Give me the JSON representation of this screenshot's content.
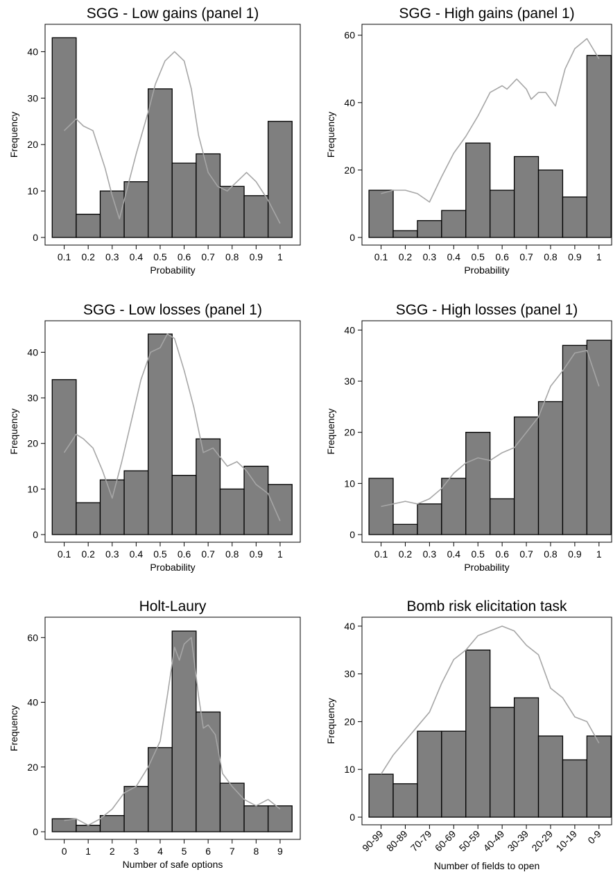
{
  "chart_data": [
    {
      "type": "bar",
      "title": "SGG - Low gains (panel 1)",
      "xlabel": "Probability",
      "ylabel": "Frequency",
      "categories": [
        "0.1",
        "0.2",
        "0.3",
        "0.4",
        "0.5",
        "0.6",
        "0.7",
        "0.8",
        "0.9",
        "1"
      ],
      "values": [
        43,
        5,
        10,
        12,
        32,
        16,
        18,
        11,
        9,
        25
      ],
      "ylim": [
        0,
        45
      ],
      "yticks": [
        0,
        10,
        20,
        30,
        40
      ],
      "density_curve": [
        [
          0.1,
          23
        ],
        [
          0.15,
          25.5
        ],
        [
          0.18,
          24
        ],
        [
          0.22,
          23
        ],
        [
          0.27,
          15
        ],
        [
          0.3,
          9
        ],
        [
          0.33,
          4
        ],
        [
          0.36,
          10
        ],
        [
          0.4,
          18
        ],
        [
          0.45,
          27
        ],
        [
          0.48,
          33
        ],
        [
          0.52,
          38
        ],
        [
          0.56,
          40
        ],
        [
          0.6,
          38
        ],
        [
          0.63,
          32
        ],
        [
          0.66,
          22
        ],
        [
          0.7,
          14
        ],
        [
          0.74,
          11
        ],
        [
          0.78,
          10
        ],
        [
          0.82,
          12
        ],
        [
          0.86,
          14
        ],
        [
          0.9,
          12
        ],
        [
          0.95,
          8
        ],
        [
          1,
          3
        ]
      ]
    },
    {
      "type": "bar",
      "title": "SGG - High gains (panel 1)",
      "xlabel": "Probability",
      "ylabel": "Frequency",
      "categories": [
        "0.1",
        "0.2",
        "0.3",
        "0.4",
        "0.5",
        "0.6",
        "0.7",
        "0.8",
        "0.9",
        "1"
      ],
      "values": [
        14,
        2,
        5,
        8,
        28,
        14,
        24,
        20,
        12,
        54
      ],
      "ylim": [
        0,
        62
      ],
      "yticks": [
        0,
        20,
        40,
        60
      ],
      "density_curve": [
        [
          0.1,
          13
        ],
        [
          0.15,
          14
        ],
        [
          0.2,
          14
        ],
        [
          0.25,
          13
        ],
        [
          0.3,
          10.5
        ],
        [
          0.35,
          18
        ],
        [
          0.4,
          25
        ],
        [
          0.45,
          30
        ],
        [
          0.5,
          36
        ],
        [
          0.55,
          43
        ],
        [
          0.6,
          45
        ],
        [
          0.62,
          44
        ],
        [
          0.66,
          47
        ],
        [
          0.7,
          44
        ],
        [
          0.72,
          41
        ],
        [
          0.75,
          43
        ],
        [
          0.78,
          43
        ],
        [
          0.82,
          39
        ],
        [
          0.86,
          50
        ],
        [
          0.9,
          56
        ],
        [
          0.95,
          59
        ],
        [
          1,
          53
        ]
      ]
    },
    {
      "type": "bar",
      "title": "SGG - Low losses (panel 1)",
      "xlabel": "Probability",
      "ylabel": "Frequency",
      "categories": [
        "0.1",
        "0.2",
        "0.3",
        "0.4",
        "0.5",
        "0.6",
        "0.7",
        "0.8",
        "0.9",
        "1"
      ],
      "values": [
        34,
        7,
        12,
        14,
        44,
        13,
        21,
        10,
        15,
        11
      ],
      "ylim": [
        0,
        46
      ],
      "yticks": [
        0,
        10,
        20,
        30,
        40
      ],
      "density_curve": [
        [
          0.1,
          18
        ],
        [
          0.15,
          22
        ],
        [
          0.18,
          21
        ],
        [
          0.22,
          19
        ],
        [
          0.26,
          14
        ],
        [
          0.3,
          8
        ],
        [
          0.34,
          16
        ],
        [
          0.38,
          25
        ],
        [
          0.42,
          34
        ],
        [
          0.46,
          40
        ],
        [
          0.5,
          41
        ],
        [
          0.53,
          44
        ],
        [
          0.56,
          43
        ],
        [
          0.6,
          36
        ],
        [
          0.64,
          28
        ],
        [
          0.68,
          18
        ],
        [
          0.72,
          19
        ],
        [
          0.78,
          15
        ],
        [
          0.82,
          16
        ],
        [
          0.86,
          14
        ],
        [
          0.9,
          11
        ],
        [
          0.95,
          9
        ],
        [
          1,
          3
        ]
      ]
    },
    {
      "type": "bar",
      "title": "SGG - High losses (panel 1)",
      "xlabel": "Probability",
      "ylabel": "Frequency",
      "categories": [
        "0.1",
        "0.2",
        "0.3",
        "0.4",
        "0.5",
        "0.6",
        "0.7",
        "0.8",
        "0.9",
        "1"
      ],
      "values": [
        11,
        2,
        6,
        11,
        20,
        7,
        23,
        26,
        37,
        38
      ],
      "ylim": [
        0,
        41
      ],
      "yticks": [
        0,
        10,
        20,
        30,
        40
      ],
      "density_curve": [
        [
          0.1,
          5.5
        ],
        [
          0.15,
          6
        ],
        [
          0.2,
          6.5
        ],
        [
          0.25,
          6
        ],
        [
          0.3,
          7
        ],
        [
          0.35,
          9
        ],
        [
          0.4,
          12
        ],
        [
          0.45,
          14
        ],
        [
          0.5,
          15
        ],
        [
          0.55,
          14.5
        ],
        [
          0.6,
          16
        ],
        [
          0.65,
          17
        ],
        [
          0.7,
          20
        ],
        [
          0.75,
          23
        ],
        [
          0.8,
          29
        ],
        [
          0.85,
          32
        ],
        [
          0.9,
          35.5
        ],
        [
          0.95,
          36
        ],
        [
          1,
          29
        ]
      ]
    },
    {
      "type": "bar",
      "title": "Holt-Laury",
      "xlabel": "Number of safe options",
      "ylabel": "Frequency",
      "categories": [
        "0",
        "1",
        "2",
        "3",
        "4",
        "5",
        "6",
        "7",
        "8",
        "9"
      ],
      "values": [
        4,
        2,
        5,
        14,
        26,
        62,
        37,
        15,
        8,
        8
      ],
      "ylim": [
        0,
        65
      ],
      "yticks": [
        0,
        20,
        40,
        60
      ],
      "density_curve": [
        [
          0,
          3.5
        ],
        [
          0.5,
          4
        ],
        [
          1,
          2
        ],
        [
          1.5,
          4
        ],
        [
          2,
          7
        ],
        [
          2.5,
          12
        ],
        [
          3,
          14
        ],
        [
          3.5,
          20
        ],
        [
          4,
          28
        ],
        [
          4.3,
          42
        ],
        [
          4.6,
          57
        ],
        [
          4.8,
          53
        ],
        [
          5,
          58
        ],
        [
          5.3,
          60
        ],
        [
          5.6,
          42
        ],
        [
          5.8,
          32
        ],
        [
          6,
          33
        ],
        [
          6.3,
          30
        ],
        [
          6.6,
          18
        ],
        [
          7,
          14
        ],
        [
          7.5,
          10
        ],
        [
          8,
          8
        ],
        [
          8.5,
          10
        ],
        [
          9,
          7
        ]
      ]
    },
    {
      "type": "bar",
      "title": "Bomb risk elicitation task",
      "xlabel": "Number of fields to open",
      "ylabel": "Frequency",
      "categories": [
        "90-99",
        "80-89",
        "70-79",
        "60-69",
        "50-59",
        "40-49",
        "30-39",
        "20-29",
        "10-19",
        "0-9"
      ],
      "values": [
        9,
        7,
        18,
        18,
        35,
        23,
        25,
        17,
        12,
        17
      ],
      "ylim": [
        0,
        41
      ],
      "yticks": [
        0,
        10,
        20,
        30,
        40
      ],
      "density_curve": [
        [
          0,
          9
        ],
        [
          0.5,
          13
        ],
        [
          1,
          16
        ],
        [
          1.5,
          19
        ],
        [
          2,
          22
        ],
        [
          2.5,
          28
        ],
        [
          3,
          33
        ],
        [
          3.5,
          35
        ],
        [
          4,
          38
        ],
        [
          4.5,
          39
        ],
        [
          5,
          40
        ],
        [
          5.5,
          39
        ],
        [
          6,
          36
        ],
        [
          6.5,
          34
        ],
        [
          7,
          27
        ],
        [
          7.5,
          25
        ],
        [
          8,
          21
        ],
        [
          8.5,
          20
        ],
        [
          9,
          15.5
        ]
      ]
    }
  ]
}
